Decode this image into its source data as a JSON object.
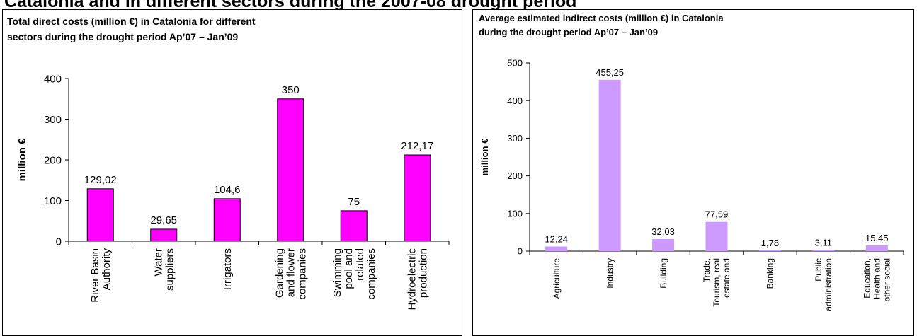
{
  "page_title": "Catalonia and in different sectors during the 2007-08 drought period",
  "chart_data": [
    {
      "type": "bar",
      "title_lines": [
        "Total direct costs (million €) in Catalonia for different",
        "sectors during the drought period Ap’07 – Jan’09"
      ],
      "ylabel": "million €",
      "ylim": [
        0,
        400
      ],
      "yticks": [
        0,
        100,
        200,
        300,
        400
      ],
      "grid": false,
      "bar_color": "#ff00ff",
      "categories": [
        [
          "River Basin",
          "Authority"
        ],
        [
          "Water",
          "suppliers"
        ],
        [
          "Irrigators"
        ],
        [
          "Gardening",
          "and flower",
          "companies"
        ],
        [
          "Swimming",
          "pool and",
          "related",
          "companies"
        ],
        [
          "Hydroelectric",
          "production"
        ]
      ],
      "values": [
        129.02,
        29.65,
        104.6,
        350,
        75,
        212.17
      ],
      "value_labels": [
        "129,02",
        "29,65",
        "104,6",
        "350",
        "75",
        "212,17"
      ]
    },
    {
      "type": "bar",
      "title_lines": [
        "Average estimated indirect costs (million €) in Catalonia",
        "during the  drought period Ap’07 – Jan’09"
      ],
      "ylabel": "million €",
      "ylim": [
        0,
        500
      ],
      "yticks": [
        0,
        100,
        200,
        300,
        400,
        500
      ],
      "grid": false,
      "bar_color": "#cc99ff",
      "categories": [
        [
          "Agriculture"
        ],
        [
          "Industry"
        ],
        [
          "Building"
        ],
        [
          "Trade,",
          "Tourism, real",
          "estate and"
        ],
        [
          "Banking"
        ],
        [
          "Public",
          "administration"
        ],
        [
          "Education,",
          "Health and",
          "other social"
        ]
      ],
      "values": [
        12.24,
        455.25,
        32.03,
        77.59,
        1.78,
        3.11,
        15.45
      ],
      "value_labels": [
        "12,24",
        "455,25",
        "32,03",
        "77,59",
        "1,78",
        "3,11",
        "15,45"
      ]
    }
  ]
}
